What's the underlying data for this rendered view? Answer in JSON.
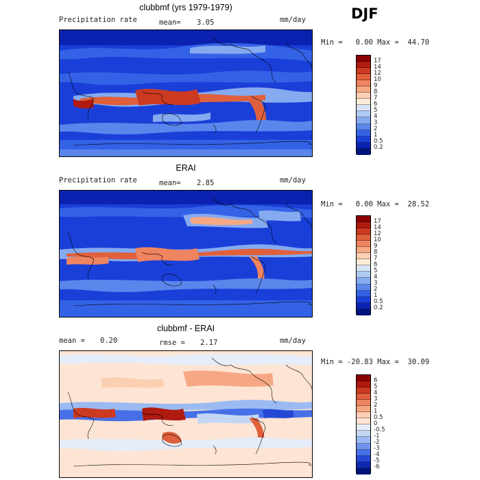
{
  "season": "DJF",
  "panels": [
    {
      "id": "model",
      "title": "clubbmf (yrs 1979-1979)",
      "left_label": "Precipitation rate",
      "center_label": "mean=",
      "center_value": "3.05",
      "right_label": "mm/day",
      "minmax_label": "Min =   0.00 Max =  44.70",
      "levels": [
        "17",
        "14",
        "12",
        "10",
        "9",
        "8",
        "7",
        "6",
        "5",
        "4",
        "3",
        "2",
        "1",
        "0.5",
        "0.2"
      ],
      "colors": [
        "#8b0000",
        "#b01a10",
        "#cc3a22",
        "#e0603c",
        "#ef8460",
        "#f6a884",
        "#fbcfb2",
        "#fdebd8",
        "#d5e4f7",
        "#aec9f2",
        "#86aaf0",
        "#5a86ec",
        "#3462e6",
        "#1a3fd8",
        "#0b22b0",
        "#00137a"
      ]
    },
    {
      "id": "obs",
      "title": "ERAI",
      "left_label": "Precipitation rate",
      "center_label": "mean=",
      "center_value": "2.85",
      "right_label": "mm/day",
      "minmax_label": "Min =   0.00 Max =  28.52",
      "levels": [
        "17",
        "14",
        "12",
        "10",
        "9",
        "8",
        "7",
        "6",
        "5",
        "4",
        "3",
        "2",
        "1",
        "0.5",
        "0.2"
      ],
      "colors": [
        "#8b0000",
        "#b01a10",
        "#cc3a22",
        "#e0603c",
        "#ef8460",
        "#f6a884",
        "#fbcfb2",
        "#fdebd8",
        "#d5e4f7",
        "#aec9f2",
        "#86aaf0",
        "#5a86ec",
        "#3462e6",
        "#1a3fd8",
        "#0b22b0",
        "#00137a"
      ]
    },
    {
      "id": "diff",
      "title": "clubbmf - ERAI",
      "left_label": "mean =",
      "left_value": "0.20",
      "center_label": "rmse =",
      "center_value": "2.17",
      "right_label": "mm/day",
      "minmax_label": "Min = -20.83 Max =  30.09",
      "levels": [
        "6",
        "5",
        "4",
        "3",
        "2",
        "1",
        "0.5",
        "0",
        "-0.5",
        "-1",
        "-2",
        "-3",
        "-4",
        "-5",
        "-6"
      ],
      "colors": [
        "#8b0000",
        "#b01a10",
        "#cc3a22",
        "#e0603c",
        "#ef8460",
        "#f6a884",
        "#fbcfb2",
        "#fde4d4",
        "#e4edf9",
        "#c3d7f5",
        "#9bbaf1",
        "#6f94ee",
        "#4770e8",
        "#2448d4",
        "#1028ae",
        "#00137a"
      ]
    }
  ]
}
